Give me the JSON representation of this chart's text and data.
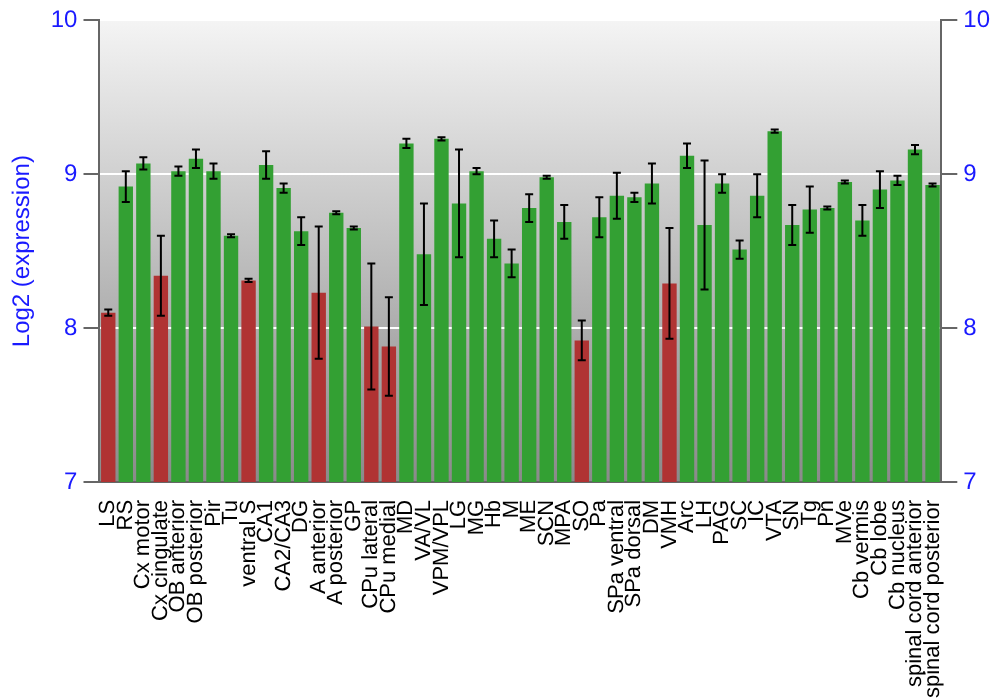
{
  "chart_data": {
    "type": "bar",
    "ylabel": "Log2 (expression)",
    "categories": [
      "LS",
      "RS",
      "Cx motor",
      "Cx cingulate",
      "OB anterior",
      "OB posterior",
      "Pir",
      "Tu",
      "ventral S",
      "CA1",
      "CA2/CA3",
      "DG",
      "A anterior",
      "A posterior",
      "GP",
      "CPu lateral",
      "CPu medial",
      "MD",
      "VA/VL",
      "VPM/VPL",
      "LG",
      "MG",
      "Hb",
      "M",
      "ME",
      "SCN",
      "MPA",
      "SO",
      "Pa",
      "SPa ventral",
      "SPa dorsal",
      "DM",
      "VMH",
      "Arc",
      "LH",
      "PAG",
      "SC",
      "IC",
      "VTA",
      "SN",
      "Tg",
      "Pn",
      "MVe",
      "Cb vermis",
      "Cb lobe",
      "Cb nucleus",
      "spinal cord anterior",
      "spinal cord posterior"
    ],
    "values": [
      8.1,
      8.92,
      9.07,
      8.34,
      9.02,
      9.1,
      9.02,
      8.6,
      8.31,
      9.06,
      8.91,
      8.63,
      8.23,
      8.75,
      8.65,
      8.01,
      7.88,
      9.2,
      8.48,
      9.23,
      8.81,
      9.02,
      8.58,
      8.42,
      8.78,
      8.98,
      8.69,
      7.92,
      8.72,
      8.86,
      8.85,
      8.94,
      8.29,
      9.12,
      8.67,
      8.94,
      8.51,
      8.86,
      9.28,
      8.67,
      8.77,
      8.78,
      8.95,
      8.7,
      8.9,
      8.96,
      9.16,
      8.93
    ],
    "errors": [
      0.02,
      0.1,
      0.04,
      0.26,
      0.03,
      0.06,
      0.05,
      0.01,
      0.01,
      0.09,
      0.03,
      0.09,
      0.43,
      0.01,
      0.01,
      0.41,
      0.32,
      0.03,
      0.33,
      0.01,
      0.35,
      0.02,
      0.12,
      0.09,
      0.09,
      0.01,
      0.11,
      0.13,
      0.13,
      0.15,
      0.03,
      0.13,
      0.36,
      0.08,
      0.42,
      0.06,
      0.06,
      0.14,
      0.01,
      0.13,
      0.15,
      0.01,
      0.01,
      0.1,
      0.12,
      0.03,
      0.03,
      0.01
    ],
    "colors": [
      "#b03333",
      "#33a033",
      "#33a033",
      "#b03333",
      "#33a033",
      "#33a033",
      "#33a033",
      "#33a033",
      "#b03333",
      "#33a033",
      "#33a033",
      "#33a033",
      "#b03333",
      "#33a033",
      "#33a033",
      "#b03333",
      "#b03333",
      "#33a033",
      "#33a033",
      "#33a033",
      "#33a033",
      "#33a033",
      "#33a033",
      "#33a033",
      "#33a033",
      "#33a033",
      "#33a033",
      "#b03333",
      "#33a033",
      "#33a033",
      "#33a033",
      "#33a033",
      "#b03333",
      "#33a033",
      "#33a033",
      "#33a033",
      "#33a033",
      "#33a033",
      "#33a033",
      "#33a033",
      "#33a033",
      "#33a033",
      "#33a033",
      "#33a033",
      "#33a033",
      "#33a033",
      "#33a033",
      "#33a033"
    ],
    "ylim": [
      7,
      10
    ],
    "yticks": [
      7,
      8,
      9,
      10
    ],
    "y2lim": [
      7,
      10
    ],
    "y2ticks": [
      7,
      8,
      9,
      10
    ],
    "grid": "y",
    "legend": false
  }
}
